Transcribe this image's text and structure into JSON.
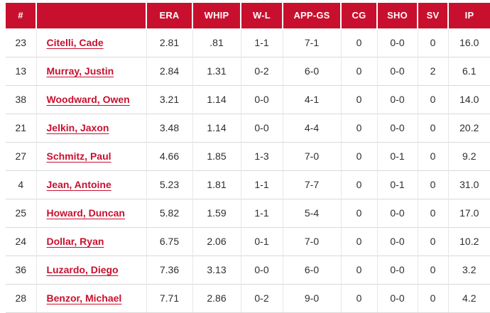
{
  "table": {
    "colors": {
      "header_bg": "#c8102e",
      "link_text": "#c8102e",
      "body_text": "#2e2e2e",
      "row_border": "#d9d9d9",
      "cell_border": "#e7e7e7"
    },
    "columns": [
      {
        "key": "num",
        "label": "#"
      },
      {
        "key": "name",
        "label": ""
      },
      {
        "key": "era",
        "label": "ERA"
      },
      {
        "key": "whip",
        "label": "WHIP"
      },
      {
        "key": "wl",
        "label": "W-L"
      },
      {
        "key": "appgs",
        "label": "APP-GS"
      },
      {
        "key": "cg",
        "label": "CG"
      },
      {
        "key": "sho",
        "label": "SHO"
      },
      {
        "key": "sv",
        "label": "SV"
      },
      {
        "key": "ip",
        "label": "IP"
      }
    ],
    "rows": [
      {
        "num": "23",
        "name": "Citelli, Cade",
        "era": "2.81",
        "whip": ".81",
        "wl": "1-1",
        "appgs": "7-1",
        "cg": "0",
        "sho": "0-0",
        "sv": "0",
        "ip": "16.0"
      },
      {
        "num": "13",
        "name": "Murray, Justin",
        "era": "2.84",
        "whip": "1.31",
        "wl": "0-2",
        "appgs": "6-0",
        "cg": "0",
        "sho": "0-0",
        "sv": "2",
        "ip": "6.1"
      },
      {
        "num": "38",
        "name": "Woodward, Owen",
        "era": "3.21",
        "whip": "1.14",
        "wl": "0-0",
        "appgs": "4-1",
        "cg": "0",
        "sho": "0-0",
        "sv": "0",
        "ip": "14.0"
      },
      {
        "num": "21",
        "name": "Jelkin, Jaxon",
        "era": "3.48",
        "whip": "1.14",
        "wl": "0-0",
        "appgs": "4-4",
        "cg": "0",
        "sho": "0-0",
        "sv": "0",
        "ip": "20.2"
      },
      {
        "num": "27",
        "name": "Schmitz, Paul",
        "era": "4.66",
        "whip": "1.85",
        "wl": "1-3",
        "appgs": "7-0",
        "cg": "0",
        "sho": "0-1",
        "sv": "0",
        "ip": "9.2"
      },
      {
        "num": "4",
        "name": "Jean, Antoine",
        "era": "5.23",
        "whip": "1.81",
        "wl": "1-1",
        "appgs": "7-7",
        "cg": "0",
        "sho": "0-1",
        "sv": "0",
        "ip": "31.0"
      },
      {
        "num": "25",
        "name": "Howard, Duncan",
        "era": "5.82",
        "whip": "1.59",
        "wl": "1-1",
        "appgs": "5-4",
        "cg": "0",
        "sho": "0-0",
        "sv": "0",
        "ip": "17.0"
      },
      {
        "num": "24",
        "name": "Dollar, Ryan",
        "era": "6.75",
        "whip": "2.06",
        "wl": "0-1",
        "appgs": "7-0",
        "cg": "0",
        "sho": "0-0",
        "sv": "0",
        "ip": "10.2"
      },
      {
        "num": "36",
        "name": "Luzardo, Diego",
        "era": "7.36",
        "whip": "3.13",
        "wl": "0-0",
        "appgs": "6-0",
        "cg": "0",
        "sho": "0-0",
        "sv": "0",
        "ip": "3.2"
      },
      {
        "num": "28",
        "name": "Benzor, Michael",
        "era": "7.71",
        "whip": "2.86",
        "wl": "0-2",
        "appgs": "9-0",
        "cg": "0",
        "sho": "0-0",
        "sv": "0",
        "ip": "4.2"
      }
    ]
  }
}
